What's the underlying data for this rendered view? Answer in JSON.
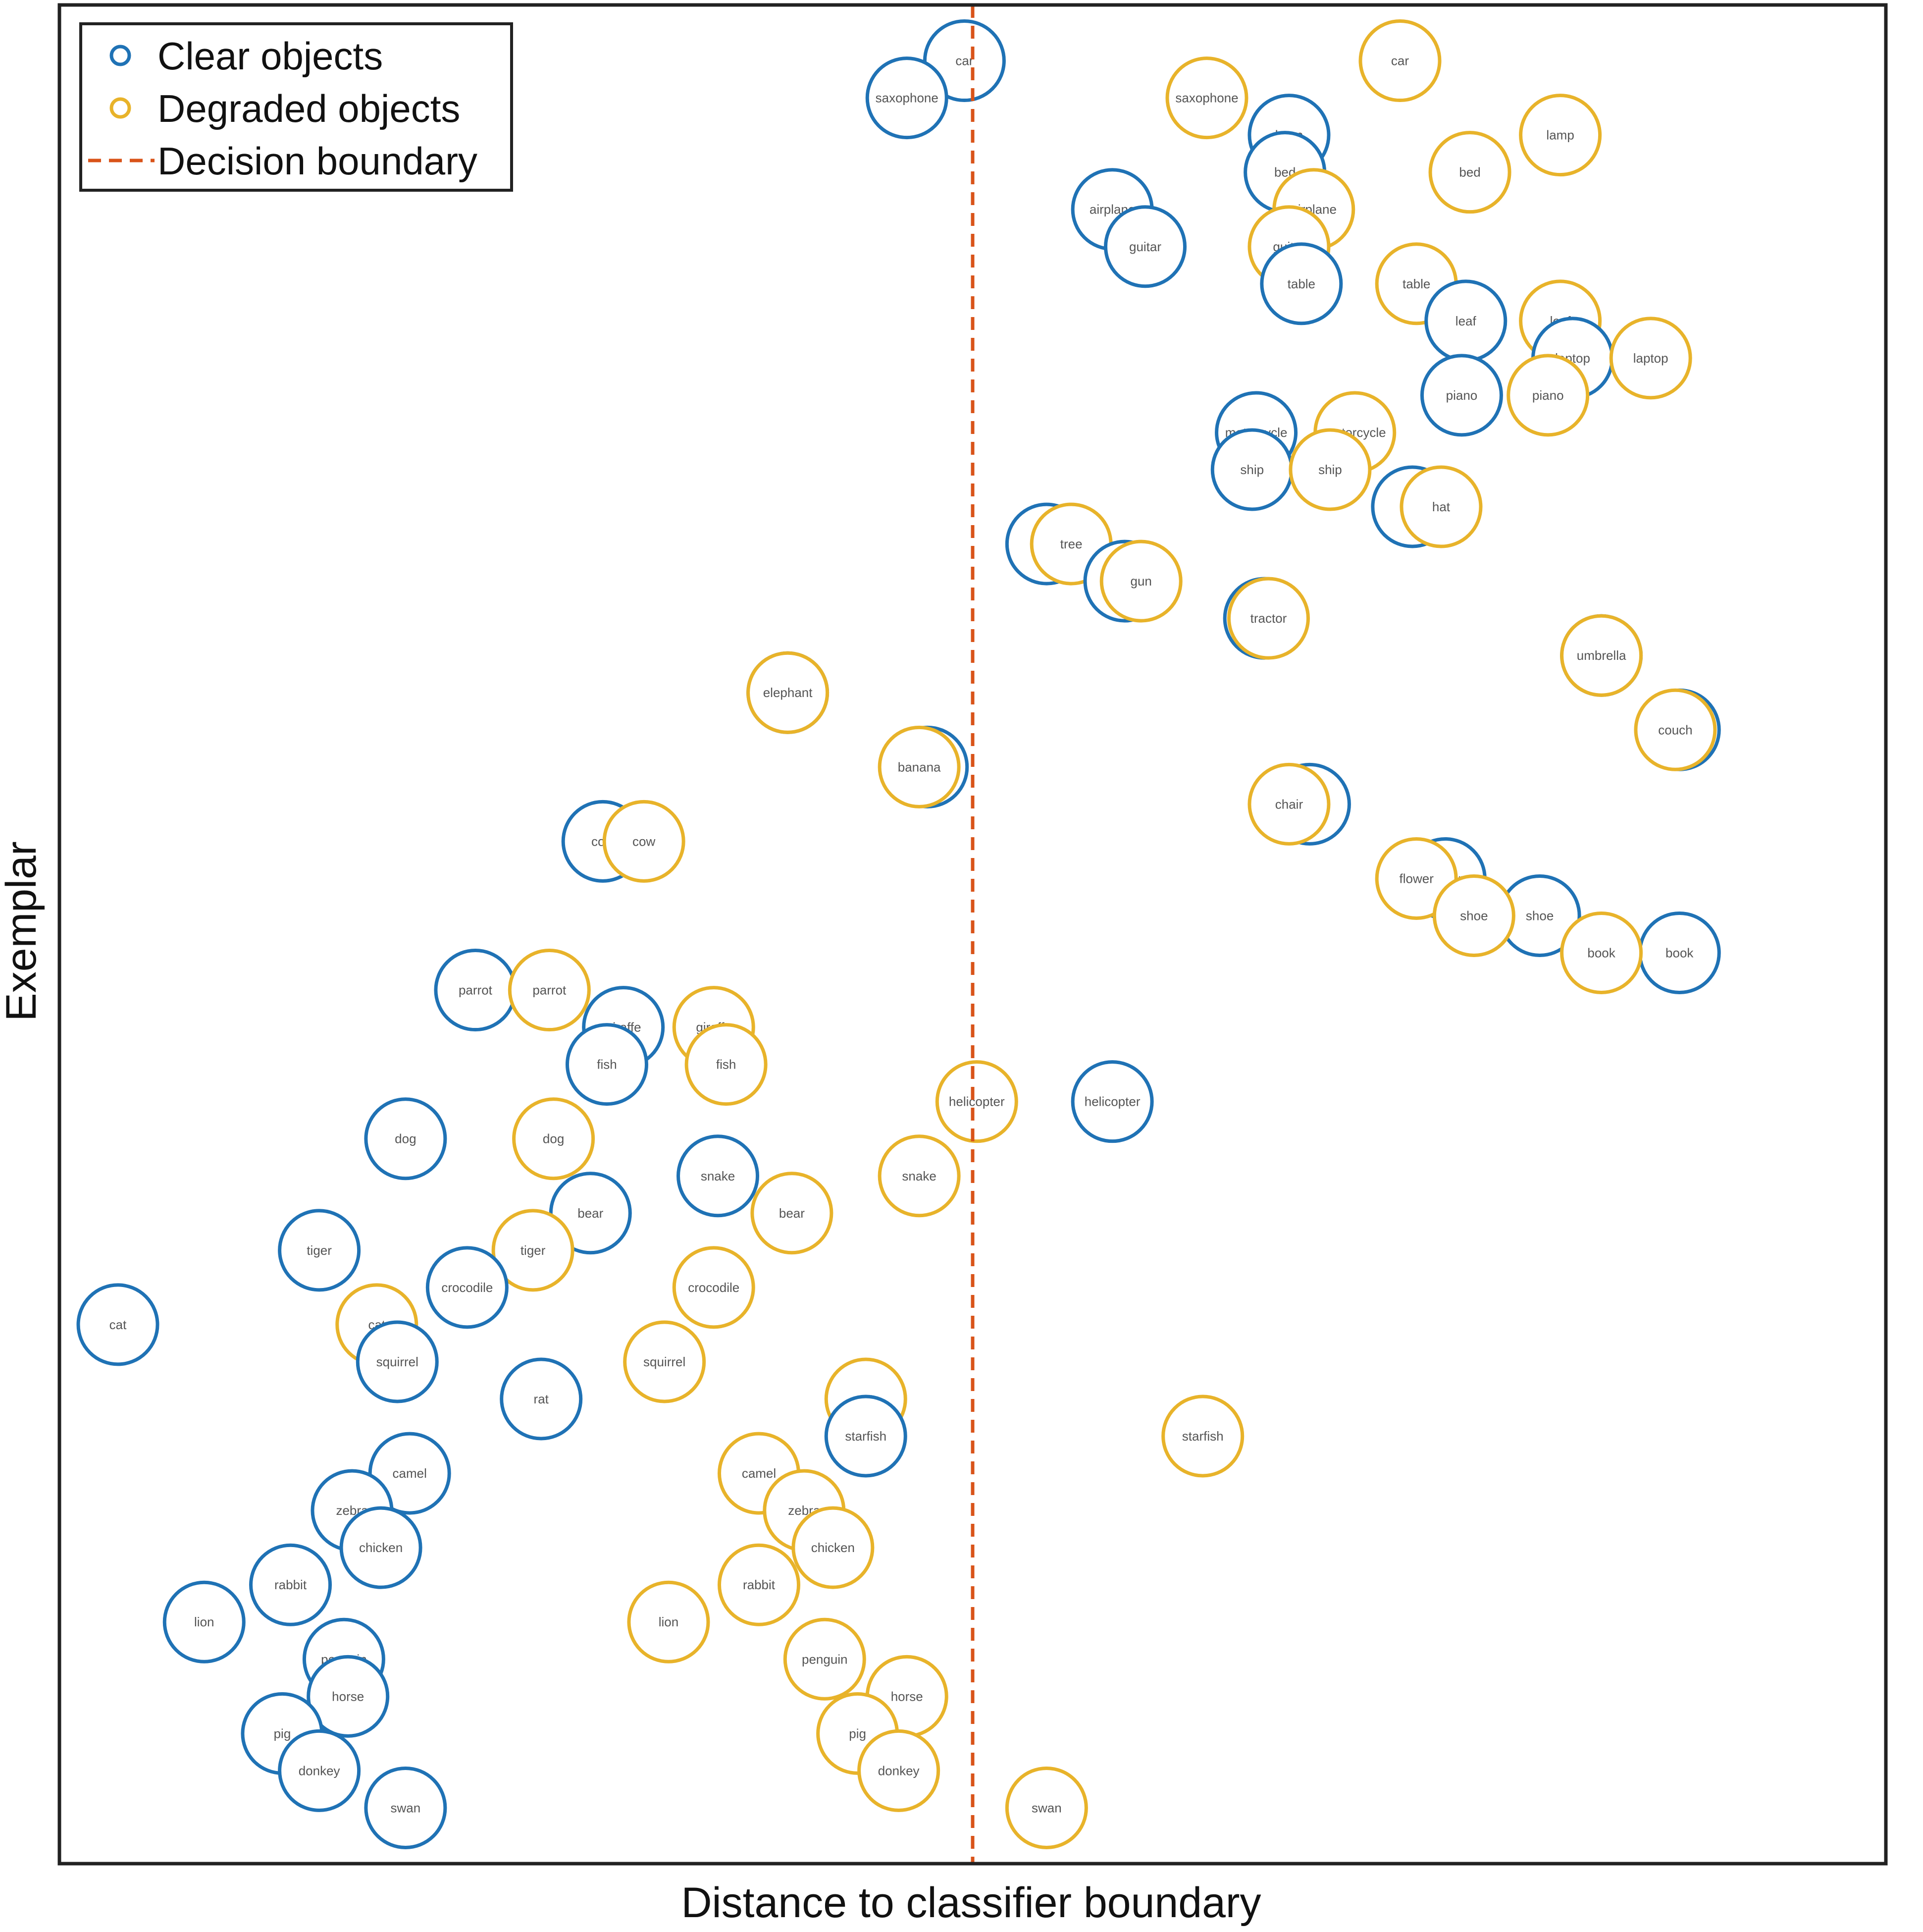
{
  "chart_data": {
    "type": "scatter",
    "title": "",
    "xlabel": "Distance to classifier boundary",
    "ylabel": "Exemplar",
    "x_tick_labels": false,
    "y_tick_labels": false,
    "grid": false,
    "legend_placement": "top-left",
    "decision_boundary_x": 0,
    "xlim": [
      -1,
      1
    ],
    "ylim": [
      0,
      1
    ],
    "colors": {
      "clear": "#1f72b5",
      "degraded": "#e8b32a",
      "boundary": "#d95319",
      "axes": "#222222"
    },
    "legend": [
      {
        "key": "clear",
        "label": "Clear objects",
        "marker": "circle"
      },
      {
        "key": "degraded",
        "label": "Degraded objects",
        "marker": "circle"
      },
      {
        "key": "boundary",
        "label": "Decision boundary",
        "marker": "dashed-line"
      }
    ],
    "points": [
      {
        "object": "car",
        "clear": [
          -0.01,
          0.97
        ],
        "degraded": [
          0.52,
          0.97
        ]
      },
      {
        "object": "saxophone",
        "clear": [
          -0.08,
          0.95
        ],
        "degraded": [
          0.285,
          0.95
        ]
      },
      {
        "object": "lamp",
        "clear": [
          0.385,
          0.93
        ],
        "degraded": [
          0.715,
          0.93
        ]
      },
      {
        "object": "bed",
        "clear": [
          0.38,
          0.91
        ],
        "degraded": [
          0.605,
          0.91
        ]
      },
      {
        "object": "airplane",
        "clear": [
          0.17,
          0.89
        ],
        "degraded": [
          0.415,
          0.89
        ]
      },
      {
        "object": "guitar",
        "clear": [
          0.21,
          0.87
        ],
        "degraded": [
          0.385,
          0.87
        ]
      },
      {
        "object": "table",
        "clear": [
          0.4,
          0.85
        ],
        "degraded": [
          0.54,
          0.85
        ]
      },
      {
        "object": "leaf",
        "clear": [
          0.6,
          0.83
        ],
        "degraded": [
          0.715,
          0.83
        ]
      },
      {
        "object": "laptop",
        "clear": [
          0.73,
          0.81
        ],
        "degraded": [
          0.825,
          0.81
        ]
      },
      {
        "object": "piano",
        "clear": [
          0.595,
          0.79
        ],
        "degraded": [
          0.7,
          0.79
        ]
      },
      {
        "object": "motorcycle",
        "clear": [
          0.345,
          0.77
        ],
        "degraded": [
          0.465,
          0.77
        ]
      },
      {
        "object": "ship",
        "clear": [
          0.34,
          0.75
        ],
        "degraded": [
          0.435,
          0.75
        ]
      },
      {
        "object": "hat",
        "clear": [
          0.535,
          0.73
        ],
        "degraded": [
          0.57,
          0.73
        ]
      },
      {
        "object": "tree",
        "clear": [
          0.09,
          0.71
        ],
        "degraded": [
          0.12,
          0.71
        ]
      },
      {
        "object": "gun",
        "clear": [
          0.185,
          0.69
        ],
        "degraded": [
          0.205,
          0.69
        ]
      },
      {
        "object": "tractor",
        "clear": [
          0.355,
          0.67
        ],
        "degraded": [
          0.36,
          0.67
        ]
      },
      {
        "object": "umbrella",
        "clear": [
          0.765,
          0.65
        ],
        "degraded": [
          0.765,
          0.65
        ]
      },
      {
        "object": "elephant",
        "clear": [
          -0.225,
          0.63
        ],
        "degraded": [
          -0.225,
          0.63
        ]
      },
      {
        "object": "couch",
        "clear": [
          0.86,
          0.61
        ],
        "degraded": [
          0.855,
          0.61
        ]
      },
      {
        "object": "banana",
        "clear": [
          -0.055,
          0.59
        ],
        "degraded": [
          -0.065,
          0.59
        ]
      },
      {
        "object": "chair",
        "clear": [
          0.41,
          0.57
        ],
        "degraded": [
          0.385,
          0.57
        ]
      },
      {
        "object": "cow",
        "clear": [
          -0.45,
          0.55
        ],
        "degraded": [
          -0.4,
          0.55
        ]
      },
      {
        "object": "flower",
        "clear": [
          0.575,
          0.53
        ],
        "degraded": [
          0.54,
          0.53
        ]
      },
      {
        "object": "shoe",
        "clear": [
          0.69,
          0.51
        ],
        "degraded": [
          0.61,
          0.51
        ]
      },
      {
        "object": "book",
        "clear": [
          0.86,
          0.49
        ],
        "degraded": [
          0.765,
          0.49
        ]
      },
      {
        "object": "parrot",
        "clear": [
          -0.605,
          0.47
        ],
        "degraded": [
          -0.515,
          0.47
        ]
      },
      {
        "object": "giraffe",
        "clear": [
          -0.425,
          0.45
        ],
        "degraded": [
          -0.315,
          0.45
        ]
      },
      {
        "object": "fish",
        "clear": [
          -0.445,
          0.43
        ],
        "degraded": [
          -0.3,
          0.43
        ]
      },
      {
        "object": "helicopter",
        "clear": [
          0.17,
          0.41
        ],
        "degraded": [
          0.005,
          0.41
        ]
      },
      {
        "object": "dog",
        "clear": [
          -0.69,
          0.39
        ],
        "degraded": [
          -0.51,
          0.39
        ]
      },
      {
        "object": "snake",
        "clear": [
          -0.31,
          0.37
        ],
        "degraded": [
          -0.065,
          0.37
        ]
      },
      {
        "object": "bear",
        "clear": [
          -0.465,
          0.35
        ],
        "degraded": [
          -0.22,
          0.35
        ]
      },
      {
        "object": "tiger",
        "clear": [
          -0.795,
          0.33
        ],
        "degraded": [
          -0.535,
          0.33
        ]
      },
      {
        "object": "crocodile",
        "clear": [
          -0.615,
          0.31
        ],
        "degraded": [
          -0.315,
          0.31
        ]
      },
      {
        "object": "cat",
        "clear": [
          -1.04,
          0.29
        ],
        "degraded": [
          -0.725,
          0.29
        ]
      },
      {
        "object": "squirrel",
        "clear": [
          -0.7,
          0.27
        ],
        "degraded": [
          -0.375,
          0.27
        ]
      },
      {
        "object": "rat",
        "clear": [
          -0.525,
          0.25
        ],
        "degraded": [
          -0.13,
          0.25
        ]
      },
      {
        "object": "starfish",
        "clear": [
          -0.13,
          0.23
        ],
        "degraded": [
          0.28,
          0.23
        ]
      },
      {
        "object": "camel",
        "clear": [
          -0.685,
          0.21
        ],
        "degraded": [
          -0.26,
          0.21
        ]
      },
      {
        "object": "zebra",
        "clear": [
          -0.755,
          0.19
        ],
        "degraded": [
          -0.205,
          0.19
        ]
      },
      {
        "object": "chicken",
        "clear": [
          -0.72,
          0.17
        ],
        "degraded": [
          -0.17,
          0.17
        ]
      },
      {
        "object": "rabbit",
        "clear": [
          -0.83,
          0.15
        ],
        "degraded": [
          -0.26,
          0.15
        ]
      },
      {
        "object": "lion",
        "clear": [
          -0.935,
          0.13
        ],
        "degraded": [
          -0.37,
          0.13
        ]
      },
      {
        "object": "penguin",
        "clear": [
          -0.765,
          0.11
        ],
        "degraded": [
          -0.18,
          0.11
        ]
      },
      {
        "object": "horse",
        "clear": [
          -0.76,
          0.09
        ],
        "degraded": [
          -0.08,
          0.09
        ]
      },
      {
        "object": "pig",
        "clear": [
          -0.84,
          0.07
        ],
        "degraded": [
          -0.14,
          0.07
        ]
      },
      {
        "object": "donkey",
        "clear": [
          -0.795,
          0.05
        ],
        "degraded": [
          -0.09,
          0.05
        ]
      },
      {
        "object": "swan",
        "clear": [
          -0.69,
          0.03
        ],
        "degraded": [
          0.09,
          0.03
        ]
      }
    ]
  }
}
